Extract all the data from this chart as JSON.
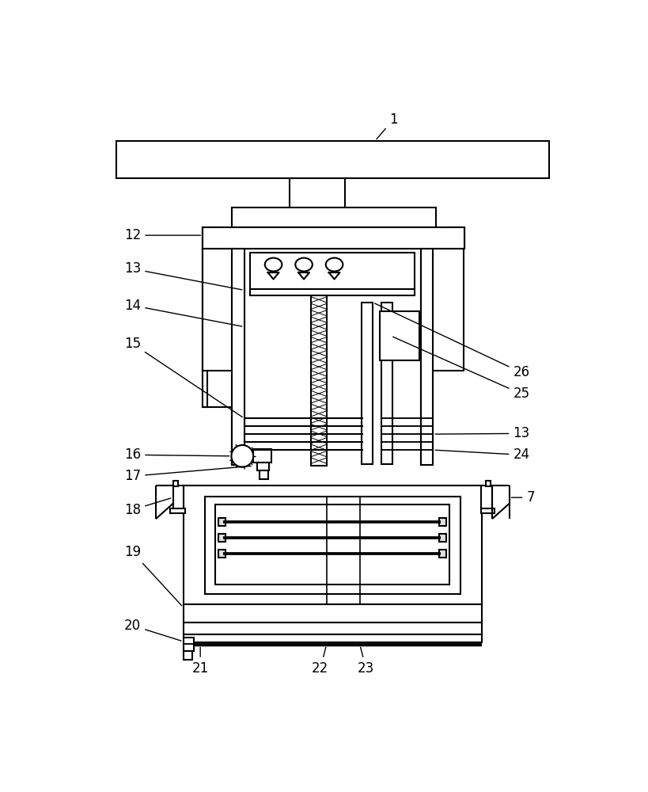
{
  "bg": "#ffffff",
  "lc": "#000000",
  "lw": 1.5,
  "fw": 8.2,
  "fh": 10.0
}
